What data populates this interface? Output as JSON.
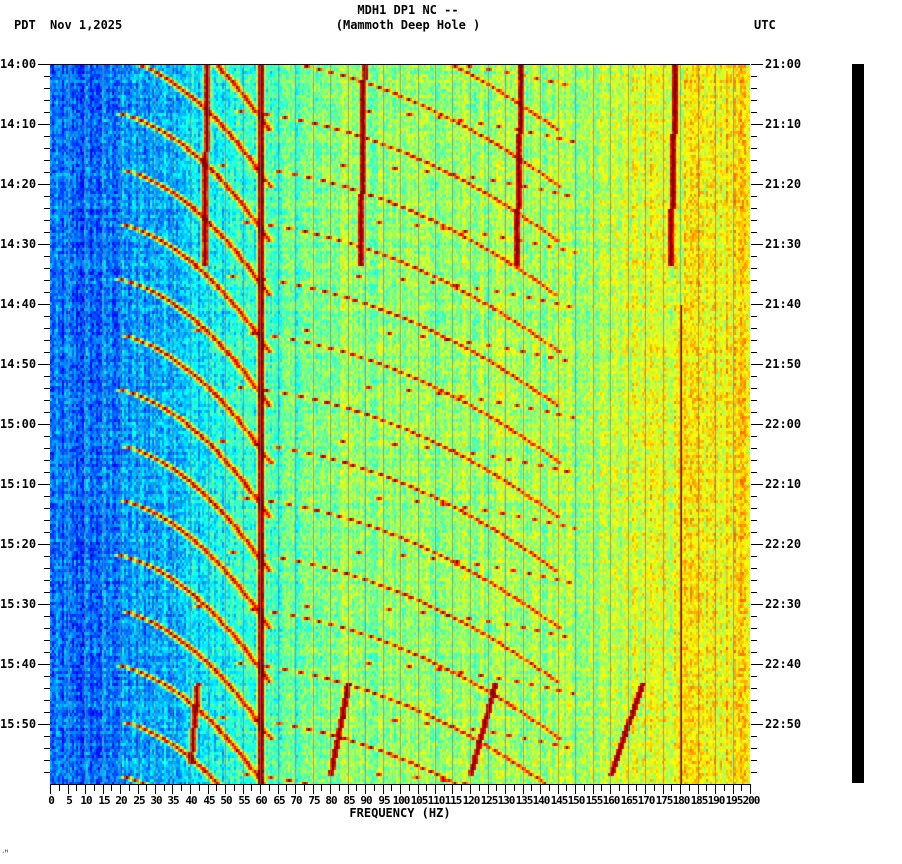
{
  "header": {
    "station_line": "MDH1 DP1 NC --",
    "location_line": "(Mammoth Deep Hole )",
    "left_timezone": "PDT",
    "date": "Nov 1,2025",
    "right_timezone": "UTC"
  },
  "colors": {
    "low": "#0000ff",
    "mid_low": "#00ffff",
    "mid": "#7fff7f",
    "mid_high": "#ffff00",
    "high": "#ff0000",
    "max": "#800000",
    "grid": "#808080",
    "amplitude_bar": "#000000"
  },
  "footer": {
    "corner_mark": "ᐧᴴ"
  },
  "chart_data": {
    "type": "heatmap",
    "title": "MDH1 DP1 NC -- (Mammoth Deep Hole )",
    "subtitle": "PDT Nov 1,2025 / UTC",
    "xlabel": "FREQUENCY (HZ)",
    "ylabel_left": "PDT",
    "ylabel_right": "UTC",
    "xlim": [
      0,
      200
    ],
    "ylim_minutes": [
      0,
      120
    ],
    "x_ticks": [
      0,
      5,
      10,
      15,
      20,
      25,
      30,
      35,
      40,
      45,
      50,
      55,
      60,
      65,
      70,
      75,
      80,
      85,
      90,
      95,
      100,
      105,
      110,
      115,
      120,
      125,
      130,
      135,
      140,
      145,
      150,
      155,
      160,
      165,
      170,
      175,
      180,
      185,
      190,
      195,
      200
    ],
    "x_tick_labels": [
      "0",
      "5",
      "10",
      "15",
      "20",
      "25",
      "30",
      "35",
      "40",
      "45",
      "50",
      "55",
      "60",
      "65",
      "70",
      "75",
      "80",
      "85",
      "90",
      "95",
      "100",
      "105",
      "110",
      "115",
      "120",
      "125",
      "130",
      "135",
      "140",
      "145",
      "150",
      "155",
      "160",
      "165",
      "170",
      "175",
      "180",
      "185",
      "190",
      "195",
      "200"
    ],
    "y_ticks_left": [
      "14:00",
      "14:10",
      "14:20",
      "14:30",
      "14:40",
      "14:50",
      "15:00",
      "15:10",
      "15:20",
      "15:30",
      "15:40",
      "15:50"
    ],
    "y_ticks_right": [
      "21:00",
      "21:10",
      "21:20",
      "21:30",
      "21:40",
      "21:50",
      "22:00",
      "22:10",
      "22:20",
      "22:30",
      "22:40",
      "22:50"
    ],
    "minor_tick_interval_minutes": 2,
    "colormap": "jet",
    "background_gradient": "low power (blue) below ~20 Hz rising to green/yellow toward 200 Hz",
    "persistent_lines_hz": [
      {
        "freq": 60,
        "start_min": 0,
        "end_min": 120,
        "intensity": "max"
      },
      {
        "freq": 180,
        "start_min": 40,
        "end_min": 120,
        "intensity": "high"
      }
    ],
    "transient_tracks": [
      {
        "freq_start": 44.5,
        "freq_end": 44.0,
        "start_min": 0,
        "end_min": 33
      },
      {
        "freq_start": 89.5,
        "freq_end": 88.5,
        "start_min": 0,
        "end_min": 33
      },
      {
        "freq_start": 134.5,
        "freq_end": 133.0,
        "start_min": 0,
        "end_min": 33
      },
      {
        "freq_start": 178.5,
        "freq_end": 177.0,
        "start_min": 0,
        "end_min": 33
      },
      {
        "freq_start": 42,
        "freq_end": 40,
        "start_min": 103,
        "end_min": 116
      },
      {
        "freq_start": 85,
        "freq_end": 80,
        "start_min": 103,
        "end_min": 118
      },
      {
        "freq_start": 127,
        "freq_end": 120,
        "start_min": 103,
        "end_min": 118
      },
      {
        "freq_start": 169,
        "freq_end": 160,
        "start_min": 103,
        "end_min": 118
      }
    ],
    "sweep_cycle_minutes": 9.2,
    "sweep_description": "repeating curved chirps rising from ~20-40 Hz to ~140 Hz every ~9 minutes, multiple harmonics"
  }
}
